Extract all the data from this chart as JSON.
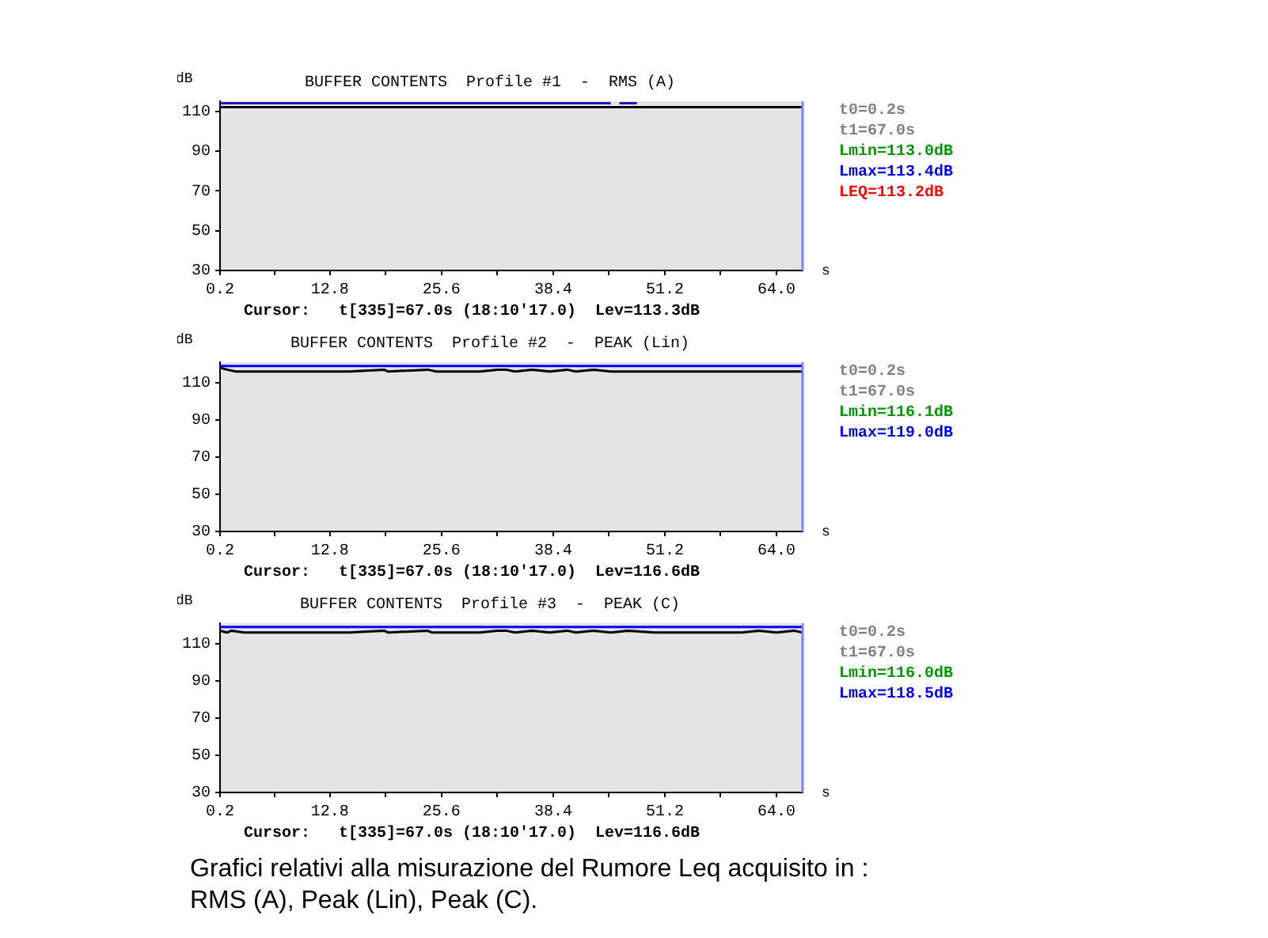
{
  "chart_data": [
    {
      "type": "line",
      "title": "BUFFER CONTENTS  Profile #1  -  RMS (A)",
      "ylabel": "dB",
      "xlabel": "s",
      "xlim": [
        0.2,
        67.0
      ],
      "ylim": [
        30,
        115
      ],
      "xticks": [
        0.2,
        {
          "value": 6.5,
          "label": null
        },
        12.8,
        {
          "value": 19.2,
          "label": null
        },
        25.6,
        {
          "value": 32.0,
          "label": null
        },
        38.4,
        {
          "value": 44.8,
          "label": null
        },
        51.2,
        {
          "value": 57.6,
          "label": null
        },
        {
          "value": 64.0,
          "label": "64.0"
        }
      ],
      "yticks": [
        30,
        50,
        70,
        90,
        110
      ],
      "series": [
        {
          "color": "#000000",
          "x": [
            0.2,
            10,
            20,
            30,
            40,
            45,
            46,
            47,
            50,
            60,
            67
          ],
          "values": [
            112,
            112,
            112,
            112,
            112,
            112,
            112,
            112,
            112,
            112,
            112
          ]
        },
        {
          "color": "#1a1ab0",
          "x": [
            0.2,
            10,
            20,
            30,
            34,
            35,
            40,
            45,
            45.5,
            46,
            48
          ],
          "values": [
            114,
            114,
            114,
            114,
            114,
            114,
            114,
            114,
            null,
            114,
            114
          ]
        }
      ],
      "ref_lines": [
        {
          "axis": "x",
          "value": 67.0,
          "color": "#8080ff"
        }
      ],
      "annotations": [
        "Cursor:   t[335]=67.0s (18:10'17.0)  Lev=113.3dB",
        "t0=0.2s",
        "t1=67.0s",
        "Lmin=113.0dB",
        "Lmax=113.4dB",
        "LEQ=113.2dB"
      ]
    },
    {
      "type": "line",
      "title": "BUFFER CONTENTS  Profile #2  -  PEAK (Lin)",
      "ylabel": "dB",
      "xlabel": "s",
      "xlim": [
        0.2,
        67.0
      ],
      "ylim": [
        30,
        121
      ],
      "xticks": [
        0.2,
        {
          "value": 6.5,
          "label": null
        },
        12.8,
        {
          "value": 19.2,
          "label": null
        },
        25.6,
        {
          "value": 32.0,
          "label": null
        },
        38.4,
        {
          "value": 44.8,
          "label": null
        },
        51.2,
        {
          "value": 57.6,
          "label": null
        },
        {
          "value": 64.0,
          "label": "64.0"
        }
      ],
      "yticks": [
        30,
        50,
        70,
        90,
        110
      ],
      "series": [
        {
          "color": "#0000ff",
          "x": [
            0.2,
            67.0
          ],
          "values": [
            119.0,
            119.0
          ]
        },
        {
          "color": "#000000",
          "x": [
            0.2,
            1,
            2,
            5,
            10,
            15,
            19,
            19.5,
            24,
            25,
            30,
            32,
            33,
            34,
            36,
            38,
            40,
            41,
            43,
            45,
            48,
            51,
            54,
            57,
            60,
            63,
            66,
            67
          ],
          "values": [
            118,
            117,
            116,
            116,
            116,
            116,
            117,
            116,
            117,
            116,
            116,
            117,
            117,
            116,
            117,
            116,
            117,
            116,
            117,
            116,
            116,
            116,
            116,
            116,
            116,
            116,
            116,
            116
          ]
        }
      ],
      "ref_lines": [
        {
          "axis": "x",
          "value": 67.0,
          "color": "#8080ff"
        }
      ],
      "annotations": [
        "Cursor:   t[335]=67.0s (18:10'17.0)  Lev=116.6dB",
        "t0=0.2s",
        "t1=67.0s",
        "Lmin=116.1dB",
        "Lmax=119.0dB"
      ]
    },
    {
      "type": "line",
      "title": "BUFFER CONTENTS  Profile #3  -  PEAK (C)",
      "ylabel": "dB",
      "xlabel": "s",
      "xlim": [
        0.2,
        67.0
      ],
      "ylim": [
        30,
        121
      ],
      "xticks": [
        0.2,
        {
          "value": 6.5,
          "label": null
        },
        12.8,
        {
          "value": 19.2,
          "label": null
        },
        25.6,
        {
          "value": 32.0,
          "label": null
        },
        38.4,
        {
          "value": 44.8,
          "label": null
        },
        51.2,
        {
          "value": 57.6,
          "label": null
        },
        {
          "value": 64.0,
          "label": "64.0"
        }
      ],
      "yticks": [
        30,
        50,
        70,
        90,
        110
      ],
      "series": [
        {
          "color": "#0000ff",
          "x": [
            0.2,
            67.0
          ],
          "values": [
            119,
            119
          ]
        },
        {
          "color": "#000000",
          "x": [
            0.2,
            1,
            1.5,
            3,
            5,
            10,
            15,
            19,
            19.5,
            24,
            24.5,
            25,
            30,
            32,
            33,
            34,
            36,
            38,
            40,
            41,
            43,
            45,
            47,
            50,
            53,
            56,
            60,
            62,
            64,
            66,
            67
          ],
          "values": [
            117,
            116,
            117,
            116,
            116,
            116,
            116,
            117,
            116,
            117,
            116,
            116,
            116,
            117,
            117,
            116,
            117,
            116,
            117,
            116,
            117,
            116,
            117,
            116,
            116,
            116,
            116,
            117,
            116,
            117,
            116
          ]
        }
      ],
      "ref_lines": [
        {
          "axis": "x",
          "value": 67.0,
          "color": "#8080ff"
        }
      ],
      "annotations": [
        "Cursor:   t[335]=67.0s (18:10'17.0)  Lev=116.6dB",
        "t0=0.2s",
        "t1=67.0s",
        "Lmin=116.0dB",
        "Lmax=118.5dB"
      ]
    },
    {
      "type": "other",
      "annotations": [
        "Grafici relativi alla misurazione del Rumore Leq acquisito in :",
        "RMS (A), Peak (Lin), Peak (C)."
      ]
    }
  ]
}
